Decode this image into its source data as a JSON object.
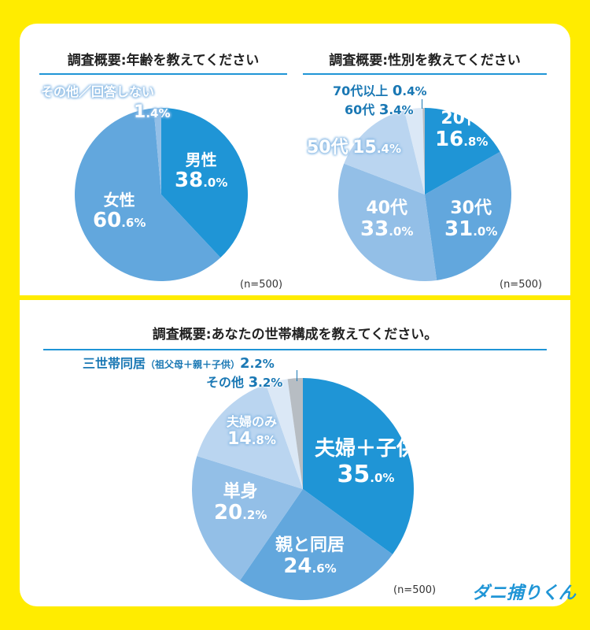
{
  "colors": {
    "background": "#ffec00",
    "accent": "#1f95d6",
    "slice1": "#1f95d6",
    "slice2": "#62a7dd",
    "slice3": "#93bfe7",
    "slice4": "#bad5f0",
    "slice5": "#dbe8f6",
    "other": "#b7bdc3"
  },
  "logo_text": "ダニ捕りくん",
  "chart_data": [
    {
      "type": "pie",
      "title": "調査概要:年齢を教えてください",
      "note": "(n=500)",
      "slices": [
        {
          "label": "男性",
          "value": 38.0,
          "int": "38",
          "dec": ".0%",
          "color": "#1f95d6"
        },
        {
          "label": "女性",
          "value": 60.6,
          "int": "60",
          "dec": ".6%",
          "color": "#62a7dd"
        },
        {
          "label": "その他／回答しない",
          "value": 1.4,
          "int": "1",
          "dec": ".4%",
          "color": "#93bfe7"
        }
      ]
    },
    {
      "type": "pie",
      "title": "調査概要:性別を教えてください",
      "note": "(n=500)",
      "slices": [
        {
          "label": "20代",
          "value": 16.8,
          "int": "16",
          "dec": ".8%",
          "color": "#1f95d6"
        },
        {
          "label": "30代",
          "value": 31.0,
          "int": "31",
          "dec": ".0%",
          "color": "#62a7dd"
        },
        {
          "label": "40代",
          "value": 33.0,
          "int": "33",
          "dec": ".0%",
          "color": "#93bfe7"
        },
        {
          "label": "50代",
          "value": 15.4,
          "int": "15",
          "dec": ".4%",
          "color": "#bad5f0"
        },
        {
          "label": "60代",
          "value": 3.4,
          "int": "3",
          "dec": ".4%",
          "color": "#dbe8f6"
        },
        {
          "label": "70代以上",
          "value": 0.4,
          "int": "0",
          "dec": ".4%",
          "color": "#b7bdc3"
        }
      ]
    },
    {
      "type": "pie",
      "title": "調査概要:あなたの世帯構成を教えてください。",
      "note": "(n=500)",
      "slices": [
        {
          "label": "夫婦＋子供",
          "value": 35.0,
          "int": "35",
          "dec": ".0%",
          "color": "#1f95d6"
        },
        {
          "label": "親と同居",
          "value": 24.6,
          "int": "24",
          "dec": ".6%",
          "color": "#62a7dd"
        },
        {
          "label": "単身",
          "value": 20.2,
          "int": "20",
          "dec": ".2%",
          "color": "#93bfe7"
        },
        {
          "label": "夫婦のみ",
          "value": 14.8,
          "int": "14",
          "dec": ".8%",
          "color": "#bad5f0"
        },
        {
          "label": "その他",
          "value": 3.2,
          "int": "3",
          "dec": ".2%",
          "color": "#dbe8f6"
        },
        {
          "label": "三世帯同居",
          "sublabel": "（祖父母＋親＋子供）",
          "value": 2.2,
          "int": "2",
          "dec": ".2%",
          "color": "#b7bdc3"
        }
      ]
    }
  ]
}
